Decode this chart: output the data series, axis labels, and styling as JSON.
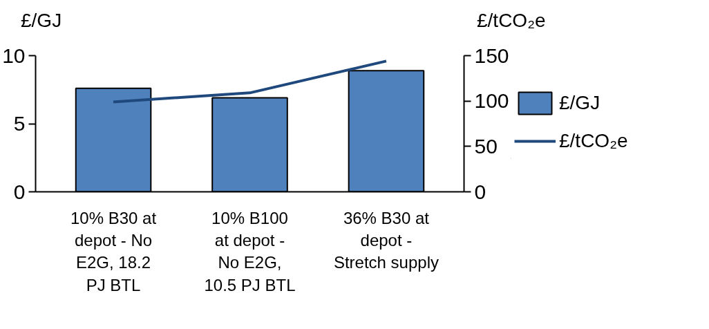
{
  "chart_data": {
    "type": "bar",
    "categories": [
      "10% B30 at\ndepot - No\nE2G, 18.2\nPJ BTL",
      "10% B100\nat depot -\nNo E2G,\n10.5 PJ BTL",
      "36% B30 at\ndepot -\nStretch supply"
    ],
    "series": [
      {
        "name": "£/GJ",
        "color": "#4f81bd",
        "values": [
          7.6,
          6.9,
          8.9
        ]
      },
      {
        "name": "£/tCO₂e",
        "type": "line",
        "axis": "y2",
        "color": "#1f497d",
        "values": [
          99,
          109,
          144
        ]
      }
    ],
    "ylabel": "£/GJ",
    "y2label": "£/tCO₂e",
    "ylim": [
      0,
      10
    ],
    "yticks": [
      0,
      5,
      10
    ],
    "y2lim": [
      0,
      150
    ],
    "y2ticks": [
      0,
      50,
      100,
      150
    ],
    "grid": false,
    "legend": "right",
    "marker": "none",
    "line_style": "solid"
  }
}
